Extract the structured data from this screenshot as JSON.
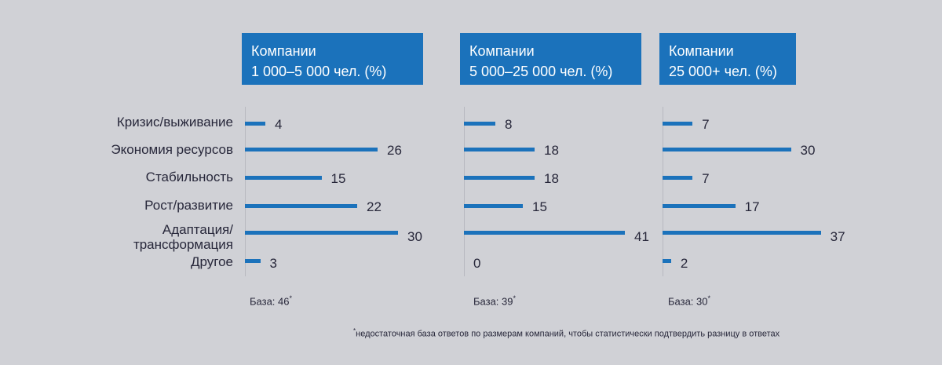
{
  "chart_data": [
    {
      "type": "bar",
      "title_line1": "Компании",
      "title_line2": "1 000–5 000 чел. (%)",
      "categories": [
        "Кризис/выживание",
        "Экономия ресурсов",
        "Стабильность",
        "Рост/развитие",
        "Адаптация/ трансформация",
        "Другое"
      ],
      "values": [
        4,
        26,
        15,
        22,
        30,
        3
      ],
      "base_text": "База: 46",
      "base_mark": "*"
    },
    {
      "type": "bar",
      "title_line1": "Компании",
      "title_line2": "5 000–25 000 чел. (%)",
      "categories": [
        "Кризис/выживание",
        "Экономия ресурсов",
        "Стабильность",
        "Рост/развитие",
        "Адаптация/ трансформация",
        "Другое"
      ],
      "values": [
        8,
        18,
        18,
        15,
        41,
        0
      ],
      "base_text": "База: 39",
      "base_mark": "*"
    },
    {
      "type": "bar",
      "title_line1": "Компании",
      "title_line2": "25 000+ чел. (%)",
      "categories": [
        "Кризис/выживание",
        "Экономия ресурсов",
        "Стабильность",
        "Рост/развитие",
        "Адаптация/ трансформация",
        "Другое"
      ],
      "values": [
        7,
        30,
        7,
        17,
        37,
        2
      ],
      "base_text": "База: 30",
      "base_mark": "*"
    }
  ],
  "category_labels": [
    {
      "lines": [
        "Кризис/выживание"
      ]
    },
    {
      "lines": [
        "Экономия ресурсов"
      ]
    },
    {
      "lines": [
        "Стабильность"
      ]
    },
    {
      "lines": [
        "Рост/развитие"
      ]
    },
    {
      "lines": [
        "Адаптация/",
        "трансформация"
      ]
    },
    {
      "lines": [
        "Другое"
      ]
    }
  ],
  "footnote": {
    "mark": "*",
    "text": "недостаточная база ответов по размерам компаний, чтобы статистически подтвердить разницу в ответах"
  },
  "colors": {
    "background": "#d0d1d6",
    "bar": "#1b72bb",
    "header": "#1b72bb",
    "text": "#27273a"
  }
}
